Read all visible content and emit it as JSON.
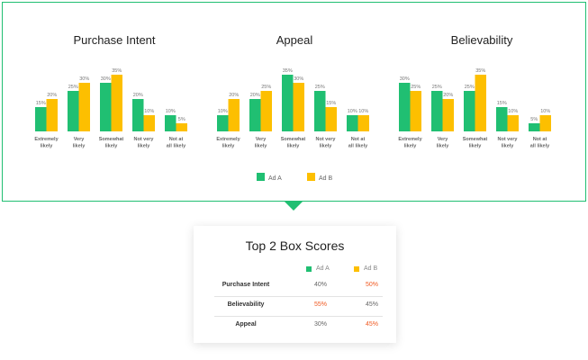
{
  "colors": {
    "ad_a": "#20bf72",
    "ad_b": "#fdbf00",
    "frame": "#20bf72",
    "highlight": "#f05a22"
  },
  "legend": [
    "Ad A",
    "Ad B"
  ],
  "chart_data": [
    {
      "type": "bar",
      "title": "Purchase Intent",
      "categories": [
        "Extremely likely",
        "Very likely",
        "Somewhat likely",
        "Not very likely",
        "Not at all likely"
      ],
      "series": [
        {
          "name": "Ad A",
          "values": [
            15,
            25,
            30,
            20,
            10
          ]
        },
        {
          "name": "Ad B",
          "values": [
            20,
            30,
            35,
            10,
            5
          ]
        }
      ],
      "ylim": [
        0,
        40
      ],
      "grid": false,
      "legend_position": "bottom"
    },
    {
      "type": "bar",
      "title": "Appeal",
      "categories": [
        "Extremely likely",
        "Very likely",
        "Somewhat likely",
        "Not very likely",
        "Not at all likely"
      ],
      "series": [
        {
          "name": "Ad A",
          "values": [
            10,
            20,
            35,
            25,
            10
          ]
        },
        {
          "name": "Ad B",
          "values": [
            20,
            25,
            30,
            15,
            10
          ]
        }
      ],
      "ylim": [
        0,
        40
      ],
      "grid": false,
      "legend_position": "bottom"
    },
    {
      "type": "bar",
      "title": "Believability",
      "categories": [
        "Extremely likely",
        "Very likely",
        "Somewhat likely",
        "Not very likely",
        "Not at all likely"
      ],
      "series": [
        {
          "name": "Ad A",
          "values": [
            30,
            25,
            25,
            15,
            5
          ]
        },
        {
          "name": "Ad B",
          "values": [
            25,
            20,
            35,
            10,
            10
          ]
        }
      ],
      "ylim": [
        0,
        40
      ],
      "grid": false,
      "legend_position": "bottom"
    }
  ],
  "category_lines": [
    [
      "Extremely",
      "likely"
    ],
    [
      "Very",
      "likely"
    ],
    [
      "Somewhat",
      "likely"
    ],
    [
      "Not very",
      "likely"
    ],
    [
      "Not at",
      "all likely"
    ]
  ],
  "summary": {
    "title": "Top 2 Box Scores",
    "legend": [
      "Ad A",
      "Ad B"
    ],
    "rows": [
      {
        "label": "Purchase Intent",
        "ad_a": "40%",
        "ad_b": "50%",
        "highlight": "b"
      },
      {
        "label": "Believability",
        "ad_a": "55%",
        "ad_b": "45%",
        "highlight": "a"
      },
      {
        "label": "Appeal",
        "ad_a": "30%",
        "ad_b": "45%",
        "highlight": "b"
      }
    ]
  }
}
